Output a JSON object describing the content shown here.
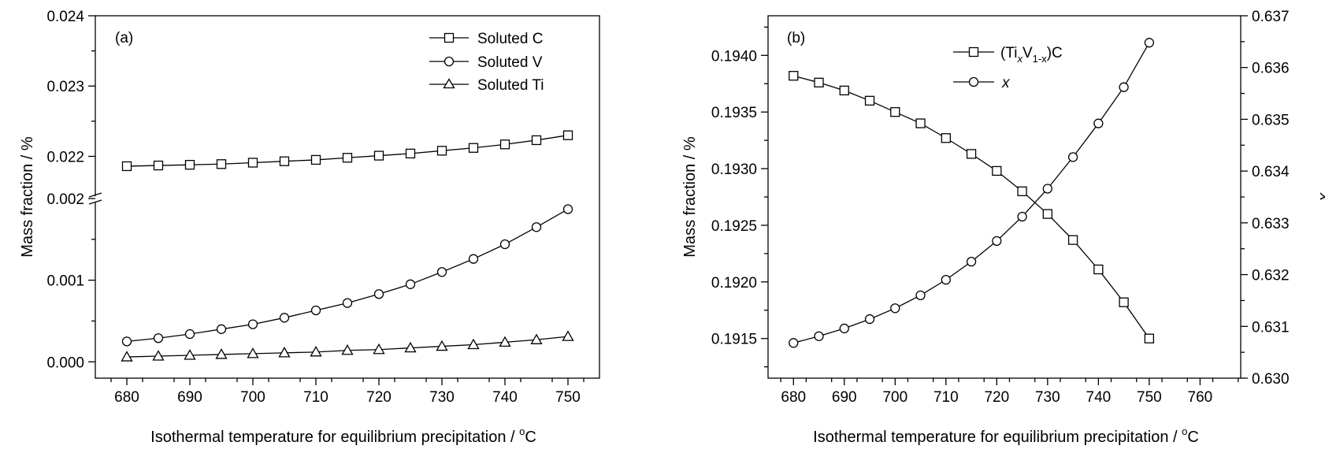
{
  "chart_data": [
    {
      "panel_label": "(a)",
      "type": "line",
      "xlabel": "Isothermal temperature for equilibrium precipitation / ",
      "xlabel_unit_sup": "o",
      "xlabel_unit": "C",
      "ylabel": "Mass fraction / %",
      "xlim": [
        675,
        755
      ],
      "x_ticks": [
        "680",
        "690",
        "700",
        "710",
        "720",
        "730",
        "740",
        "750"
      ],
      "y_axis_break": true,
      "y_ticks_upper": [
        "0.022",
        "0.023",
        "0.024"
      ],
      "y_ticks_lower": [
        "0.000",
        "0.001",
        "0.002"
      ],
      "ylim_upper": [
        0.0214,
        0.024
      ],
      "ylim_lower": [
        -0.0002,
        0.002
      ],
      "legend_position": "top-right",
      "x": [
        680,
        685,
        690,
        695,
        700,
        705,
        710,
        715,
        720,
        725,
        730,
        735,
        740,
        745,
        750
      ],
      "series": [
        {
          "name": "Soluted C",
          "marker": "square",
          "segment": "upper",
          "values": [
            0.02186,
            0.02187,
            0.02188,
            0.02189,
            0.02191,
            0.02193,
            0.02195,
            0.02198,
            0.02201,
            0.02204,
            0.02208,
            0.02212,
            0.02217,
            0.02223,
            0.0223
          ]
        },
        {
          "name": "Soluted V",
          "marker": "circle",
          "segment": "lower",
          "values": [
            0.00025,
            0.00029,
            0.00034,
            0.0004,
            0.00046,
            0.00054,
            0.00063,
            0.00072,
            0.00083,
            0.00095,
            0.0011,
            0.00126,
            0.00144,
            0.00165,
            0.00187
          ]
        },
        {
          "name": "Soluted Ti",
          "marker": "triangle",
          "segment": "lower",
          "values": [
            6e-05,
            7e-05,
            8e-05,
            9e-05,
            0.0001,
            0.00011,
            0.00012,
            0.00014,
            0.00015,
            0.00017,
            0.00019,
            0.00021,
            0.00024,
            0.00027,
            0.00031
          ]
        }
      ]
    },
    {
      "panel_label": "(b)",
      "type": "line",
      "xlabel": "Isothermal temperature for equilibrium precipitation / ",
      "xlabel_unit_sup": "o",
      "xlabel_unit": "C",
      "ylabel": "Mass fraction / %",
      "ylabel_right": "x",
      "xlim": [
        675,
        768
      ],
      "x_ticks": [
        "680",
        "690",
        "700",
        "710",
        "720",
        "730",
        "740",
        "750",
        "760"
      ],
      "ylim_left": [
        0.19115,
        0.19435
      ],
      "y_ticks_left": [
        "0.1915",
        "0.1920",
        "0.1925",
        "0.1930",
        "0.1935",
        "0.1940"
      ],
      "ylim_right": [
        0.63,
        0.637
      ],
      "y_ticks_right": [
        "0.630",
        "0.631",
        "0.632",
        "0.633",
        "0.634",
        "0.635",
        "0.636",
        "0.637"
      ],
      "legend_position": "top-center",
      "x": [
        680,
        685,
        690,
        695,
        700,
        705,
        710,
        715,
        720,
        725,
        730,
        735,
        740,
        745,
        750
      ],
      "series": [
        {
          "name_parts": [
            "(Ti",
            "x",
            "V",
            "1-x",
            ")C"
          ],
          "marker": "square",
          "axis": "left",
          "values": [
            0.19382,
            0.19376,
            0.19369,
            0.1936,
            0.1935,
            0.1934,
            0.19327,
            0.19313,
            0.19298,
            0.1928,
            0.1926,
            0.19237,
            0.19211,
            0.19182,
            0.1915
          ]
        },
        {
          "name": "x",
          "marker": "circle",
          "axis": "right",
          "values": [
            0.63068,
            0.63081,
            0.63096,
            0.63114,
            0.63135,
            0.6316,
            0.6319,
            0.63225,
            0.63265,
            0.63312,
            0.63366,
            0.63427,
            0.63492,
            0.63562,
            0.63648
          ]
        }
      ]
    }
  ]
}
